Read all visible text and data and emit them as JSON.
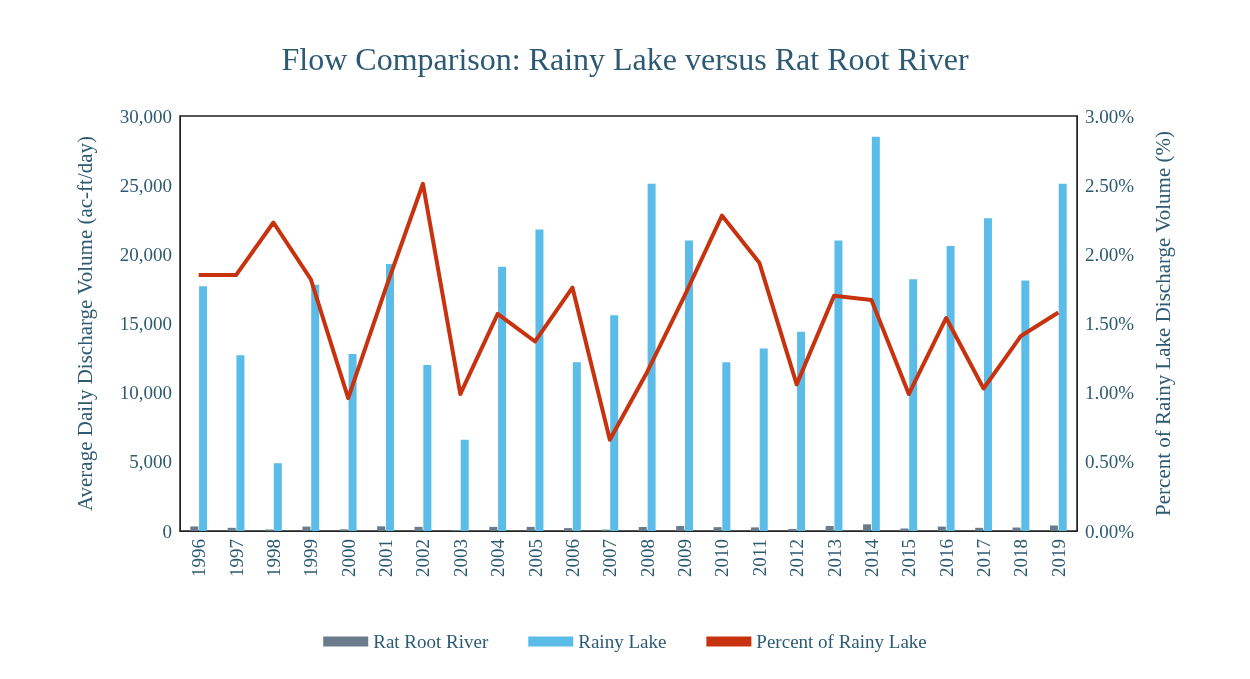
{
  "chart_data": {
    "type": "bar",
    "title": "Flow Comparison: Rainy Lake versus Rat Root River",
    "ylabel": "Average Daily Discharge Volume (ac-ft/day)",
    "y2label": "Percent of Rainy Lake Discharge Volume (%)",
    "categories": [
      "1996",
      "1997",
      "1998",
      "1999",
      "2000",
      "2001",
      "2002",
      "2003",
      "2004",
      "2005",
      "2006",
      "2007",
      "2008",
      "2009",
      "2010",
      "2011",
      "2012",
      "2013",
      "2014",
      "2015",
      "2016",
      "2017",
      "2018",
      "2019"
    ],
    "series": [
      {
        "name": "Rat Root River",
        "color": "#6b7b8c",
        "values": [
          330,
          230,
          110,
          320,
          120,
          340,
          300,
          70,
          300,
          300,
          210,
          100,
          290,
          360,
          280,
          260,
          150,
          360,
          480,
          180,
          320,
          230,
          250,
          400
        ]
      },
      {
        "name": "Rainy Lake",
        "color": "#5bbce8",
        "values": [
          17700,
          12700,
          4900,
          17800,
          12800,
          19300,
          12000,
          6600,
          19100,
          21800,
          12200,
          15600,
          25100,
          21000,
          12200,
          13200,
          14400,
          21000,
          28500,
          18200,
          20600,
          22600,
          18100,
          25100
        ]
      },
      {
        "name": "Percent of Rainy Lake",
        "type": "line",
        "axis": "y2",
        "color": "#c8330f",
        "values": [
          1.85,
          1.85,
          2.23,
          1.82,
          0.96,
          1.75,
          2.51,
          0.99,
          1.57,
          1.37,
          1.76,
          0.66,
          1.15,
          1.7,
          2.28,
          1.94,
          1.06,
          1.7,
          1.67,
          0.99,
          1.54,
          1.03,
          1.41,
          1.58
        ]
      }
    ],
    "ylim": [
      0,
      30000
    ],
    "yticks": [
      0,
      {
        "value": 5000,
        "label": "5,000"
      },
      {
        "value": 10000,
        "label": "10,000"
      },
      {
        "value": 15000,
        "label": "15,000"
      },
      {
        "value": 20000,
        "label": "20,000"
      },
      {
        "value": 25000,
        "label": "25,000"
      },
      {
        "value": 30000,
        "label": "30,000"
      }
    ],
    "y2lim": [
      0,
      3
    ],
    "y2ticks": [
      {
        "value": 0,
        "label": "0.00%"
      },
      {
        "value": 0.5,
        "label": "0.50%"
      },
      {
        "value": 1,
        "label": "1.00%"
      },
      {
        "value": 1.5,
        "label": "1.50%"
      },
      {
        "value": 2,
        "label": "2.00%"
      },
      {
        "value": 2.5,
        "label": "2.50%"
      },
      {
        "value": 3,
        "label": "3.00%"
      }
    ],
    "grid": false,
    "legend": "bottom",
    "marker": "none",
    "line_style": "solid"
  }
}
